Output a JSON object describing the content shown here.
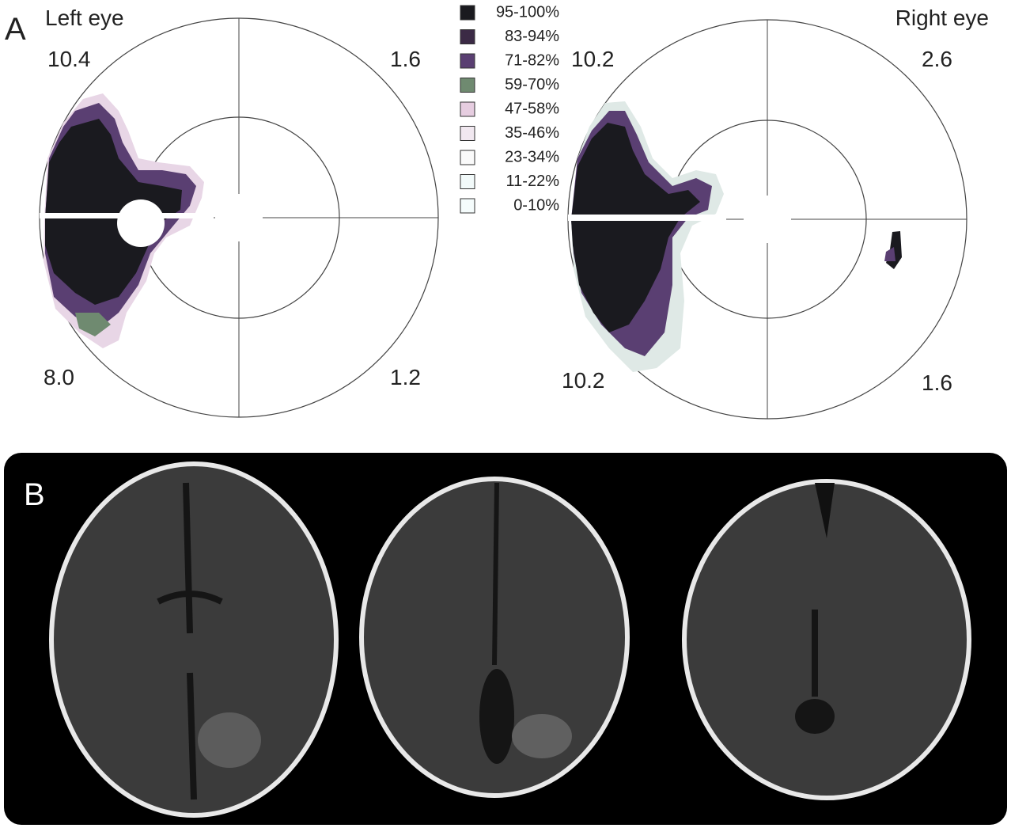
{
  "panel_a": {
    "label": "A",
    "left_eye": {
      "title": "Left eye",
      "quadrants": {
        "upper_left": "10.4",
        "upper_right": "1.6",
        "lower_left": "8.0",
        "lower_right": "1.2"
      }
    },
    "right_eye": {
      "title": "Right eye",
      "quadrants": {
        "upper_left": "10.2",
        "upper_right": "2.6",
        "lower_left": "10.2",
        "lower_right": "1.6"
      }
    },
    "legend": [
      {
        "label": "95-100%",
        "color": "#1a1a1f"
      },
      {
        "label": "83-94%",
        "color": "#3b2a45"
      },
      {
        "label": "71-82%",
        "color": "#5a3f72"
      },
      {
        "label": "59-70%",
        "color": "#6f8a70"
      },
      {
        "label": "47-58%",
        "color": "#e6cde0"
      },
      {
        "label": "35-46%",
        "color": "#f1e8f0"
      },
      {
        "label": "23-34%",
        "color": "#fafafa"
      },
      {
        "label": "11-22%",
        "color": "#f2fafa"
      },
      {
        "label": "0-10%",
        "color": "#f5fcfc"
      }
    ]
  },
  "panel_b": {
    "label": "B"
  }
}
